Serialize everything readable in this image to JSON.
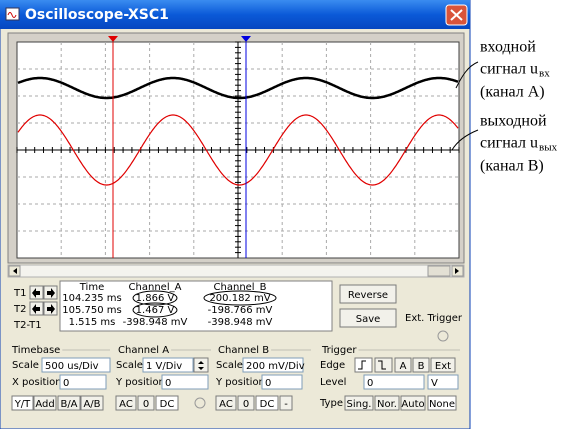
{
  "window": {
    "title": "Oscilloscope-XSC1"
  },
  "annotations": [
    {
      "line1": "входной",
      "line2": "сигнал u",
      "subscript": "вх",
      "line3": "(канал A)"
    },
    {
      "line1": "выходной",
      "line2": "сигнал u",
      "subscript": "вых",
      "line3": "(канал B)"
    }
  ],
  "readout": {
    "row_labels": [
      "T1",
      "T2",
      "T2-T1"
    ],
    "columns": [
      "Time",
      "Channel_A",
      "Channel_B"
    ],
    "rows": [
      [
        "104.235 ms",
        "1.866 V",
        "200.182 mV"
      ],
      [
        "105.750 ms",
        "1.467 V",
        "-198.766 mV"
      ],
      [
        "1.515 ms",
        "-398.948 mV",
        "-398.948 mV"
      ]
    ],
    "buttons": [
      "Reverse",
      "Save"
    ],
    "ext_trigger": "Ext. Trigger"
  },
  "timebase": {
    "label": "Timebase",
    "scale_label": "Scale",
    "scale": "500 us/Div",
    "position_label": "X position",
    "position": "0",
    "modes": [
      "Y/T",
      "Add",
      "B/A",
      "A/B"
    ]
  },
  "channel_a": {
    "label": "Channel A",
    "scale_label": "Scale",
    "scale": "1  V/Div",
    "position_label": "Y position",
    "position": "0",
    "coupling": [
      "AC",
      "0",
      "DC"
    ]
  },
  "channel_b": {
    "label": "Channel B",
    "scale_label": "Scale",
    "scale": "200 mV/Div",
    "position_label": "Y position",
    "position": "0",
    "coupling": [
      "AC",
      "0",
      "DC",
      "-"
    ]
  },
  "trigger": {
    "label": "Trigger",
    "edge_label": "Edge",
    "sources": [
      "A",
      "B",
      "Ext"
    ],
    "level_label": "Level",
    "level": "0",
    "level_unit": "V",
    "type_label": "Type",
    "types": [
      "Sing.",
      "Nor.",
      "Auto",
      "None"
    ]
  }
}
